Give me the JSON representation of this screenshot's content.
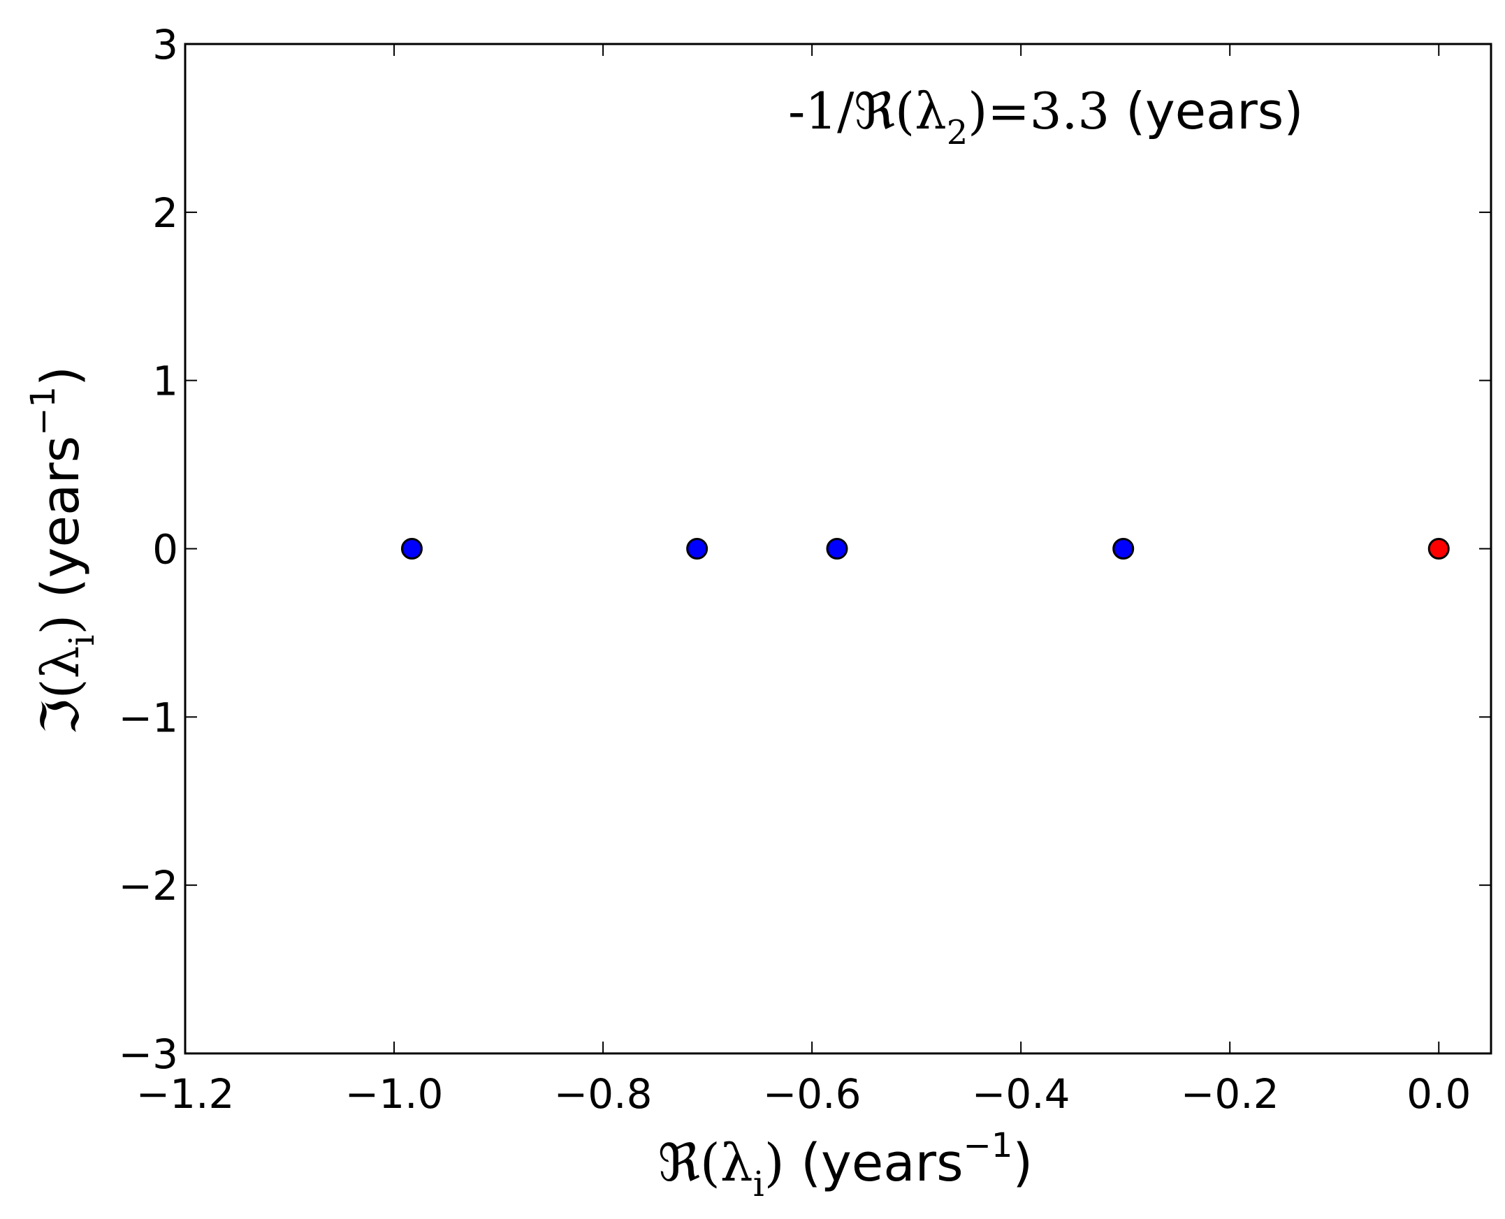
{
  "chart_data": {
    "type": "scatter",
    "xlim": [
      -1.2,
      0.05
    ],
    "ylim": [
      -3,
      3
    ],
    "x_ticks": [
      -1.2,
      -1.0,
      -0.8,
      -0.6,
      -0.4,
      -0.2,
      0.0
    ],
    "y_ticks": [
      -3,
      -2,
      -1,
      0,
      1,
      2,
      3
    ],
    "x_tick_labels": [
      "−1.2",
      "−1.0",
      "−0.8",
      "−0.6",
      "−0.4",
      "−0.2",
      "0.0"
    ],
    "y_tick_labels": [
      "−3",
      "−2",
      "−1",
      "0",
      "1",
      "2",
      "3"
    ],
    "xlabel": {
      "math_prefix": "ℜ(λ",
      "subscript": "i",
      "math_close": ")",
      "plain": " (years",
      "superscript": "−1",
      "suffix": ")"
    },
    "ylabel": {
      "math_prefix": "ℑ(λ",
      "subscript": "i",
      "math_close": ")",
      "plain": " (years",
      "superscript": "−1",
      "suffix": ")"
    },
    "annotation": {
      "prefix": "-1/ℜ(λ",
      "subscript": "2",
      "math_rest": ")=3.3",
      "plain": " (years)"
    },
    "grid": false,
    "legend": "none",
    "series": [
      {
        "color": "#0000ff",
        "points": [
          {
            "x": -0.983,
            "y": 0
          },
          {
            "x": -0.71,
            "y": 0
          },
          {
            "x": -0.576,
            "y": 0
          },
          {
            "x": -0.302,
            "y": 0
          }
        ]
      },
      {
        "color": "#ff0000",
        "points": [
          {
            "x": 0.0,
            "y": 0
          }
        ]
      }
    ]
  }
}
